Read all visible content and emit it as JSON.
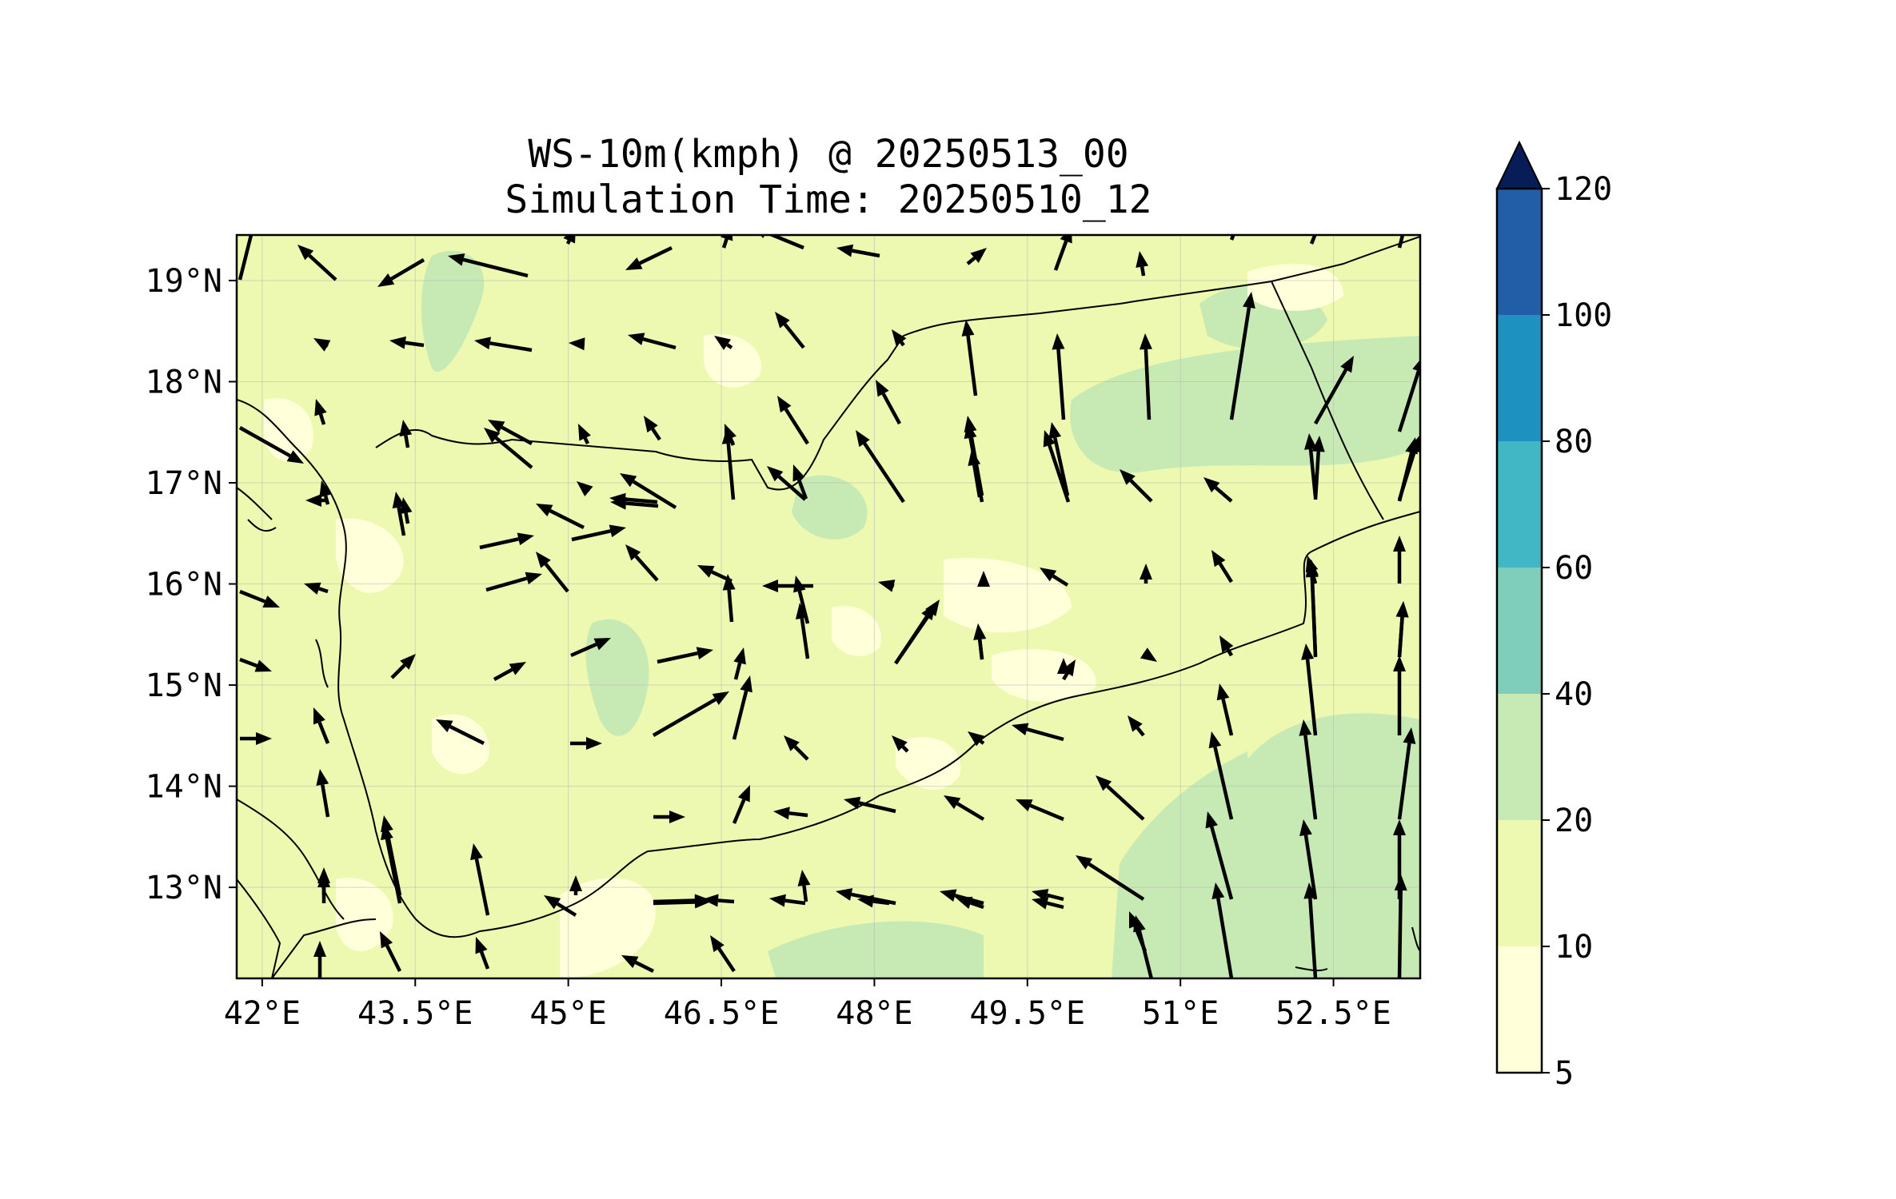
{
  "title": {
    "line1": "WS-10m(kmph) @ 20250513_00",
    "line2": "Simulation Time: 20250510_12"
  },
  "map": {
    "region": "Yemen",
    "lon_range": [
      41.75,
      53.35
    ],
    "lat_range": [
      12.1,
      19.45
    ],
    "x_ticks": [
      {
        "value": 42.0,
        "label": "42°E"
      },
      {
        "value": 43.5,
        "label": "43.5°E"
      },
      {
        "value": 45.0,
        "label": "45°E"
      },
      {
        "value": 46.5,
        "label": "46.5°E"
      },
      {
        "value": 48.0,
        "label": "48°E"
      },
      {
        "value": 49.5,
        "label": "49.5°E"
      },
      {
        "value": 51.0,
        "label": "51°E"
      },
      {
        "value": 52.5,
        "label": "52.5°E"
      }
    ],
    "y_ticks": [
      {
        "value": 19,
        "label": "19°N"
      },
      {
        "value": 18,
        "label": "18°N"
      },
      {
        "value": 17,
        "label": "17°N"
      },
      {
        "value": 16,
        "label": "16°N"
      },
      {
        "value": 15,
        "label": "15°N"
      },
      {
        "value": 14,
        "label": "14°N"
      },
      {
        "value": 13,
        "label": "13°N"
      }
    ],
    "grid": true
  },
  "colorbar": {
    "levels": [
      5,
      10,
      20,
      40,
      60,
      80,
      100,
      120
    ],
    "tick_labels": [
      "5",
      "10",
      "20",
      "40",
      "60",
      "80",
      "100",
      "120"
    ],
    "colors": [
      "#ffffd9",
      "#edf8b1",
      "#c7e9b4",
      "#7fcdbb",
      "#41b6c4",
      "#1d91c0",
      "#225ea8",
      "#253494"
    ],
    "extend_color": "#081d58",
    "extend": "max"
  },
  "colors": {
    "band_5_10": "#ffffd9",
    "band_10_20": "#edf8b1",
    "band_20_40": "#c7e9b4",
    "coastline": "#000000",
    "arrow": "#000000"
  }
}
